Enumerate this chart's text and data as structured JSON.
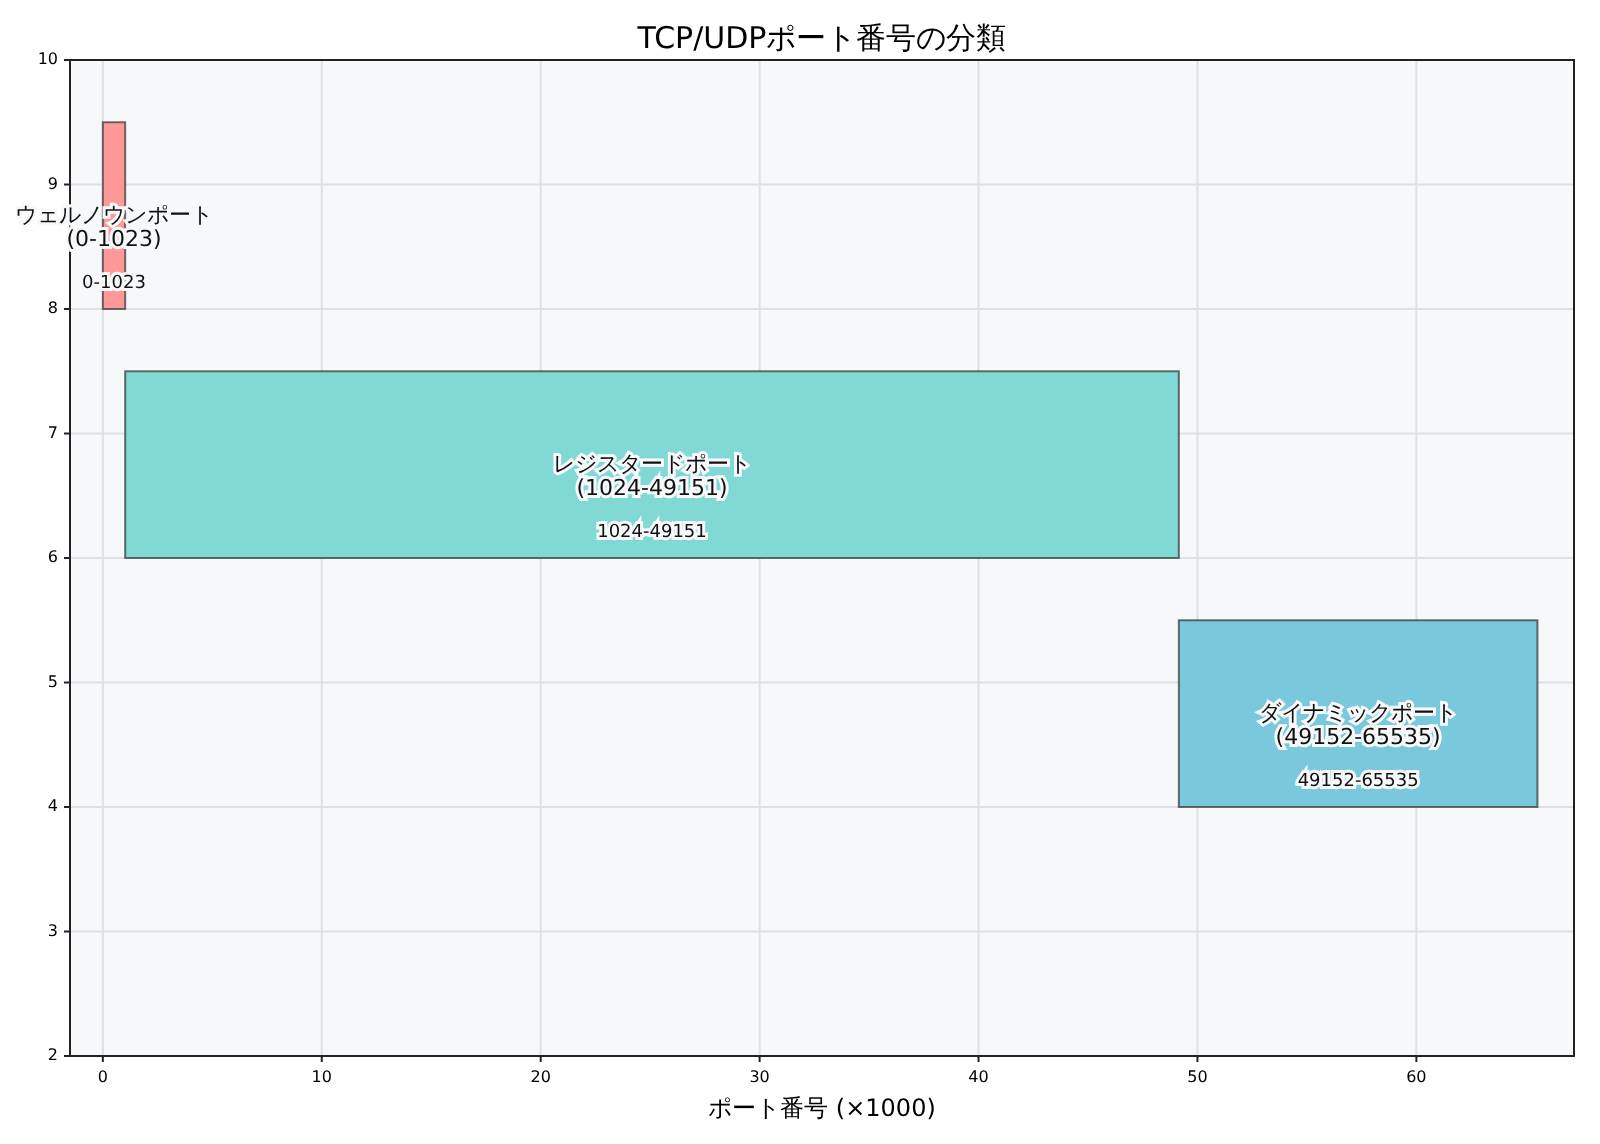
{
  "chart_data": {
    "type": "bar",
    "orientation": "horizontal",
    "title": "TCP/UDPポート番号の分類",
    "xlabel": "ポート番号 (×1000)",
    "x": [
      8.75,
      6.75,
      4.75
    ],
    "base": [
      0,
      1.02,
      49.15
    ],
    "values": [
      1.02,
      48.13,
      16.38
    ],
    "colors": [
      "#ff9999",
      "#80d9d4",
      "#7ac8dc"
    ],
    "xlim": [
      -1.5,
      67.2
    ],
    "xticks": [
      0,
      10,
      20,
      30,
      40,
      50,
      60
    ],
    "ylim": [
      2,
      10
    ],
    "yticks": [
      2,
      3,
      4,
      5,
      6,
      7,
      8,
      9,
      10
    ],
    "grid": true,
    "annotations": [
      "ウェルノウンポート\n(0-1023)",
      "0-1023",
      "レジスタードポート\n(1024-49151)",
      "1024-49151",
      "ダイナミックポート\n(49152-65535)",
      "49152-65535"
    ]
  }
}
